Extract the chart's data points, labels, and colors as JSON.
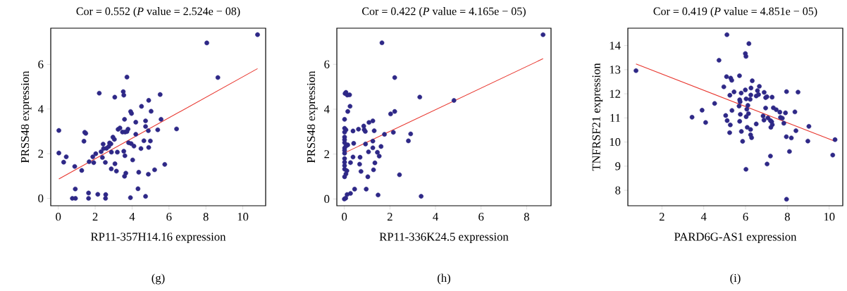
{
  "chart_data": [
    {
      "type": "scatter",
      "title": "Cor = 0.552 (*P* value = 2.524e − 08)",
      "xlabel": "RP11-357H14.16 expression",
      "ylabel": "PRSS48 expression",
      "annotations": [
        "(g)"
      ],
      "xlim": [
        -0.41,
        11.24
      ],
      "ylim": [
        -0.33,
        7.62
      ],
      "xticks": [
        0,
        2,
        4,
        6,
        8,
        10
      ],
      "yticks": [
        0,
        2,
        4,
        6
      ],
      "series": [
        {
          "type": "scatter",
          "color": "#2e2887",
          "marker": "circle",
          "x": [
            10.8,
            8.05,
            8.65,
            3.72,
            2.22,
            3.52,
            3.55,
            3.06,
            5.52,
            4.51,
            4.9,
            3.92,
            3.97,
            5.03,
            3.59,
            5.57,
            4.2,
            4.73,
            4.73,
            0.03,
            1.43,
            1.49,
            3.24,
            3.34,
            3.48,
            3.62,
            3.78,
            3.72,
            4.88,
            5.39,
            6.41,
            4.2,
            2.96,
            3.04,
            1.39,
            4.64,
            4.99,
            3.81,
            3.95,
            4.1,
            2.43,
            2.78,
            2.85,
            2.73,
            2.61,
            2.45,
            4.48,
            4.9,
            3.55,
            3.2,
            2.88,
            2.32,
            2.03,
            0.03,
            0.43,
            1.87,
            3.61,
            2.39,
            0.29,
            1.67,
            1.92,
            2.55,
            3.07,
            4.03,
            5.77,
            0.89,
            1.27,
            2.87,
            3.15,
            5.22,
            3.66,
            3.59,
            4.36,
            4.88,
            0.92,
            4.32,
            1.64,
            2.14,
            2.57,
            0.76,
            0.93,
            1.64,
            2.56,
            3.91,
            4.73
          ],
          "values": [
            7.33,
            6.96,
            5.41,
            5.43,
            4.71,
            4.78,
            4.62,
            4.53,
            4.65,
            4.12,
            4.39,
            3.89,
            3.8,
            3.9,
            3.54,
            3.54,
            3.41,
            3.47,
            3.22,
            3.04,
            2.96,
            2.91,
            3.09,
            3.15,
            2.97,
            2.97,
            3.1,
            2.99,
            3.03,
            3.07,
            3.11,
            2.87,
            2.74,
            2.64,
            2.56,
            2.58,
            2.57,
            2.49,
            2.45,
            2.34,
            2.43,
            2.48,
            2.44,
            2.32,
            2.24,
            2.23,
            2.23,
            2.28,
            2.11,
            2.07,
            2.07,
            2.09,
            2.0,
            2.03,
            1.86,
            1.86,
            1.91,
            1.83,
            1.62,
            1.64,
            1.6,
            1.61,
            1.55,
            1.72,
            1.52,
            1.43,
            1.25,
            1.32,
            1.22,
            1.28,
            1.13,
            0.99,
            1.17,
            1.08,
            0.42,
            0.43,
            0.24,
            0.18,
            0.17,
            0.0,
            0.0,
            0.0,
            0.0,
            0.03,
            0.09
          ]
        },
        {
          "type": "line",
          "color": "#e8362e",
          "x": [
            0.03,
            10.8
          ],
          "values": [
            0.87,
            5.81
          ]
        }
      ]
    },
    {
      "type": "scatter",
      "title": "Cor = 0.422 (*P* value = 4.165e − 05)",
      "xlabel": "RP11-336K24.5 expression",
      "ylabel": "PRSS48 expression",
      "annotations": [
        "(h)"
      ],
      "xlim": [
        -0.33,
        9.07
      ],
      "ylim": [
        -0.3,
        7.61
      ],
      "xticks": [
        0,
        2,
        4,
        6,
        8
      ],
      "yticks": [
        0,
        2,
        4,
        6
      ],
      "series": [
        {
          "type": "scatter",
          "color": "#2e2887",
          "marker": "circle",
          "x": [
            8.72,
            1.65,
            2.21,
            3.31,
            4.81,
            0.03,
            0.07,
            0.13,
            0.23,
            0.25,
            0.15,
            2.03,
            2.21,
            0.01,
            1.08,
            1.25,
            0.85,
            0.62,
            0.87,
            0.92,
            0.38,
            1.31,
            0.01,
            0.07,
            0.01,
            2.15,
            2.91,
            1.76,
            2.81,
            0.01,
            0.01,
            0.01,
            1.25,
            0.41,
            0.93,
            0.15,
            0.07,
            0.01,
            1.25,
            1.61,
            0.01,
            0.01,
            1.06,
            1.45,
            1.53,
            0.38,
            0.69,
            0.01,
            0.01,
            0.27,
            0.67,
            1.34,
            0.01,
            0.01,
            0.11,
            0.73,
            1.28,
            0.07,
            0.01,
            1.03,
            2.42,
            0.45,
            0.96,
            0.27,
            0.12,
            1.48,
            3.37,
            0.06,
            0.0
          ],
          "values": [
            7.32,
            6.96,
            5.41,
            4.54,
            4.39,
            4.7,
            4.75,
            4.63,
            4.64,
            4.13,
            3.9,
            3.79,
            3.9,
            3.55,
            3.41,
            3.48,
            3.25,
            3.11,
            3.09,
            3.01,
            3.03,
            3.04,
            3.15,
            3.08,
            2.98,
            2.97,
            2.9,
            2.88,
            2.59,
            2.76,
            2.64,
            2.51,
            2.58,
            2.48,
            2.45,
            2.41,
            2.36,
            2.27,
            2.28,
            2.34,
            2.17,
            2.04,
            2.1,
            2.08,
            1.91,
            1.87,
            1.86,
            1.8,
            1.64,
            1.62,
            1.55,
            1.61,
            1.49,
            1.33,
            1.26,
            1.23,
            1.3,
            1.12,
            0.99,
            0.99,
            1.08,
            0.44,
            0.44,
            0.25,
            0.2,
            0.18,
            0.12,
            0.04,
            0.0
          ]
        },
        {
          "type": "line",
          "color": "#e8362e",
          "x": [
            0.0,
            8.72
          ],
          "values": [
            2.05,
            6.25
          ]
        }
      ]
    },
    {
      "type": "scatter",
      "title": "Cor = 0.419 (*P* value = 4.851e − 05)",
      "xlabel": "PARD6G-AS1 expression",
      "ylabel": "TNFRSF21 expression",
      "annotations": [
        "(i)"
      ],
      "xlim": [
        0.37,
        10.65
      ],
      "ylim": [
        7.36,
        14.72
      ],
      "xticks": [
        2,
        4,
        6,
        8,
        10
      ],
      "yticks": [
        8,
        9,
        10,
        11,
        12,
        13,
        14
      ],
      "series": [
        {
          "type": "scatter",
          "color": "#2e2887",
          "marker": "circle",
          "x": [
            5.11,
            6.16,
            5.99,
            6.02,
            4.73,
            0.76,
            5.09,
            5.29,
            5.34,
            5.71,
            6.32,
            4.96,
            6.66,
            5.45,
            5.79,
            5.99,
            6.26,
            6.57,
            6.89,
            7.96,
            8.51,
            5.25,
            6.25,
            6.51,
            6.62,
            6.96,
            7.02,
            7.27,
            6.03,
            6.22,
            5.72,
            5.74,
            4.52,
            6.11,
            5.69,
            6.96,
            7.33,
            7.47,
            7.64,
            8.36,
            7.91,
            6.06,
            3.92,
            5.35,
            6.14,
            5.75,
            6.03,
            5.05,
            3.44,
            6.84,
            7.07,
            7.67,
            7.76,
            6.88,
            7.19,
            7.25,
            5.12,
            5.72,
            4.09,
            7.83,
            5.27,
            6.51,
            7.28,
            7.21,
            6.08,
            6.24,
            9.03,
            8.41,
            5.24,
            5.8,
            6.24,
            6.29,
            7.95,
            8.19,
            10.28,
            5.86,
            8.98,
            8.1,
            7.19,
            10.17,
            7.03,
            6.02,
            7.96
          ],
          "values": [
            14.45,
            14.08,
            13.67,
            13.55,
            13.39,
            12.96,
            12.71,
            12.65,
            12.56,
            12.75,
            12.54,
            12.29,
            12.31,
            12.08,
            12.03,
            12.16,
            12.24,
            12.13,
            12.06,
            12.09,
            12.07,
            11.94,
            11.95,
            11.91,
            11.97,
            11.84,
            11.88,
            11.86,
            11.79,
            11.77,
            11.75,
            11.67,
            11.6,
            11.52,
            11.49,
            11.41,
            11.42,
            11.34,
            11.24,
            11.25,
            11.21,
            11.36,
            11.32,
            11.31,
            11.18,
            11.15,
            11.05,
            11.1,
            11.03,
            11.08,
            11.0,
            11.02,
            10.99,
            10.91,
            10.89,
            10.84,
            10.89,
            10.86,
            10.81,
            10.78,
            10.71,
            10.75,
            10.72,
            10.61,
            10.61,
            10.52,
            10.65,
            10.47,
            10.39,
            10.44,
            10.3,
            10.18,
            10.22,
            10.17,
            10.1,
            10.03,
            10.04,
            9.61,
            9.42,
            9.46,
            9.09,
            8.87,
            7.63
          ]
        },
        {
          "type": "line",
          "color": "#e8362e",
          "x": [
            0.76,
            10.28
          ],
          "values": [
            13.24,
            10.03
          ]
        }
      ]
    }
  ]
}
